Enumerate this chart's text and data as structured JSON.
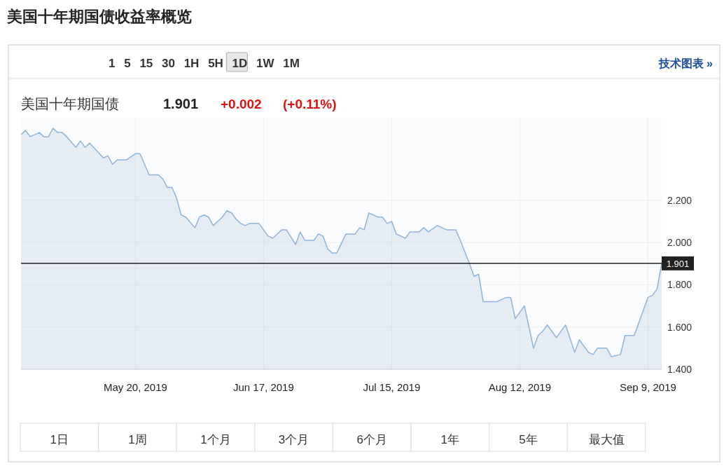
{
  "chart_data": {
    "type": "area",
    "title": "美国十年期国债收益率概览",
    "subtitle": "美国十年期国债",
    "annotations": [
      "1.901",
      "+0.002",
      "(+0.11%)",
      "1 5 15 30 1H 5H 1D 1W 1M",
      "技术图表 »",
      "1日",
      "1周",
      "1个月",
      "3个月",
      "6个月",
      "1年",
      "5年",
      "最大值"
    ],
    "x": [
      "2019-04-25",
      "2019-04-26",
      "2019-04-27",
      "2019-04-29",
      "2019-04-30",
      "2019-05-01",
      "2019-05-02",
      "2019-05-03",
      "2019-05-04",
      "2019-05-05",
      "2019-05-07",
      "2019-05-08",
      "2019-05-09",
      "2019-05-10",
      "2019-05-13",
      "2019-05-14",
      "2019-05-15",
      "2019-05-16",
      "2019-05-18",
      "2019-05-20",
      "2019-05-21",
      "2019-05-23",
      "2019-05-25",
      "2019-05-26",
      "2019-05-27",
      "2019-05-28",
      "2019-05-29",
      "2019-05-30",
      "2019-05-31",
      "2019-06-02",
      "2019-06-03",
      "2019-06-04",
      "2019-06-05",
      "2019-06-06",
      "2019-06-08",
      "2019-06-09",
      "2019-06-10",
      "2019-06-11",
      "2019-06-12",
      "2019-06-13",
      "2019-06-14",
      "2019-06-16",
      "2019-06-18",
      "2019-06-19",
      "2019-06-21",
      "2019-06-22",
      "2019-06-24",
      "2019-06-25",
      "2019-06-26",
      "2019-06-28",
      "2019-06-29",
      "2019-06-30",
      "2019-07-01",
      "2019-07-02",
      "2019-07-03",
      "2019-07-05",
      "2019-07-07",
      "2019-07-08",
      "2019-07-09",
      "2019-07-10",
      "2019-07-12",
      "2019-07-13",
      "2019-07-14",
      "2019-07-15",
      "2019-07-16",
      "2019-07-18",
      "2019-07-19",
      "2019-07-20",
      "2019-07-21",
      "2019-07-22",
      "2019-07-23",
      "2019-07-25",
      "2019-07-26",
      "2019-07-27",
      "2019-07-29",
      "2019-07-30",
      "2019-08-01",
      "2019-08-02",
      "2019-08-03",
      "2019-08-04",
      "2019-08-06",
      "2019-08-07",
      "2019-08-09",
      "2019-08-10",
      "2019-08-11",
      "2019-08-13",
      "2019-08-15",
      "2019-08-16",
      "2019-08-17",
      "2019-08-18",
      "2019-08-20",
      "2019-08-22",
      "2019-08-24",
      "2019-08-25",
      "2019-08-27",
      "2019-08-28",
      "2019-08-29",
      "2019-08-31",
      "2019-09-01",
      "2019-09-03",
      "2019-09-04",
      "2019-09-06",
      "2019-09-09",
      "2019-09-10",
      "2019-09-11",
      "2019-09-12"
    ],
    "series": [
      {
        "color": "#8fb4d8",
        "values": [
          2.51,
          2.53,
          2.5,
          2.52,
          2.5,
          2.5,
          2.54,
          2.52,
          2.52,
          2.5,
          2.45,
          2.48,
          2.45,
          2.47,
          2.4,
          2.41,
          2.37,
          2.39,
          2.39,
          2.42,
          2.42,
          2.32,
          2.32,
          2.3,
          2.26,
          2.26,
          2.21,
          2.13,
          2.12,
          2.07,
          2.12,
          2.13,
          2.12,
          2.08,
          2.12,
          2.15,
          2.14,
          2.11,
          2.09,
          2.08,
          2.09,
          2.09,
          2.03,
          2.02,
          2.06,
          2.06,
          1.99,
          2.05,
          2.01,
          2.01,
          2.04,
          2.03,
          1.97,
          1.95,
          1.95,
          2.04,
          2.04,
          2.07,
          2.06,
          2.14,
          2.12,
          2.12,
          2.09,
          2.1,
          2.04,
          2.02,
          2.05,
          2.05,
          2.05,
          2.07,
          2.05,
          2.08,
          2.07,
          2.06,
          2.06,
          2.01,
          1.9,
          1.84,
          1.85,
          1.72,
          1.72,
          1.72,
          1.74,
          1.74,
          1.64,
          1.7,
          1.5,
          1.56,
          1.58,
          1.61,
          1.55,
          1.61,
          1.48,
          1.54,
          1.48,
          1.47,
          1.5,
          1.5,
          1.46,
          1.47,
          1.56,
          1.56,
          1.74,
          1.75,
          1.78,
          1.901
        ]
      }
    ],
    "xlim": [
      "2019-04-25",
      "2019-09-12"
    ],
    "xticks": [
      {
        "value": "2019-05-20",
        "label": "May 20, 2019"
      },
      {
        "value": "2019-06-17",
        "label": "Jun 17, 2019"
      },
      {
        "value": "2019-07-15",
        "label": "Jul 15, 2019"
      },
      {
        "value": "2019-08-12",
        "label": "Aug 12, 2019"
      },
      {
        "value": "2019-09-09",
        "label": "Sep 9, 2019"
      }
    ],
    "ylim": [
      1.4,
      2.59
    ],
    "yticks": [
      {
        "value": 1.4,
        "label": "1.400"
      },
      {
        "value": 1.6,
        "label": "1.600"
      },
      {
        "value": 1.8,
        "label": "1.800"
      },
      {
        "value": 2.0,
        "label": "2.000"
      },
      {
        "value": 2.2,
        "label": "2.200"
      }
    ],
    "ref_lines": [
      {
        "axis": "y",
        "value": 1.901,
        "label": "1.901",
        "color": "#222222"
      }
    ],
    "grid": true
  }
}
